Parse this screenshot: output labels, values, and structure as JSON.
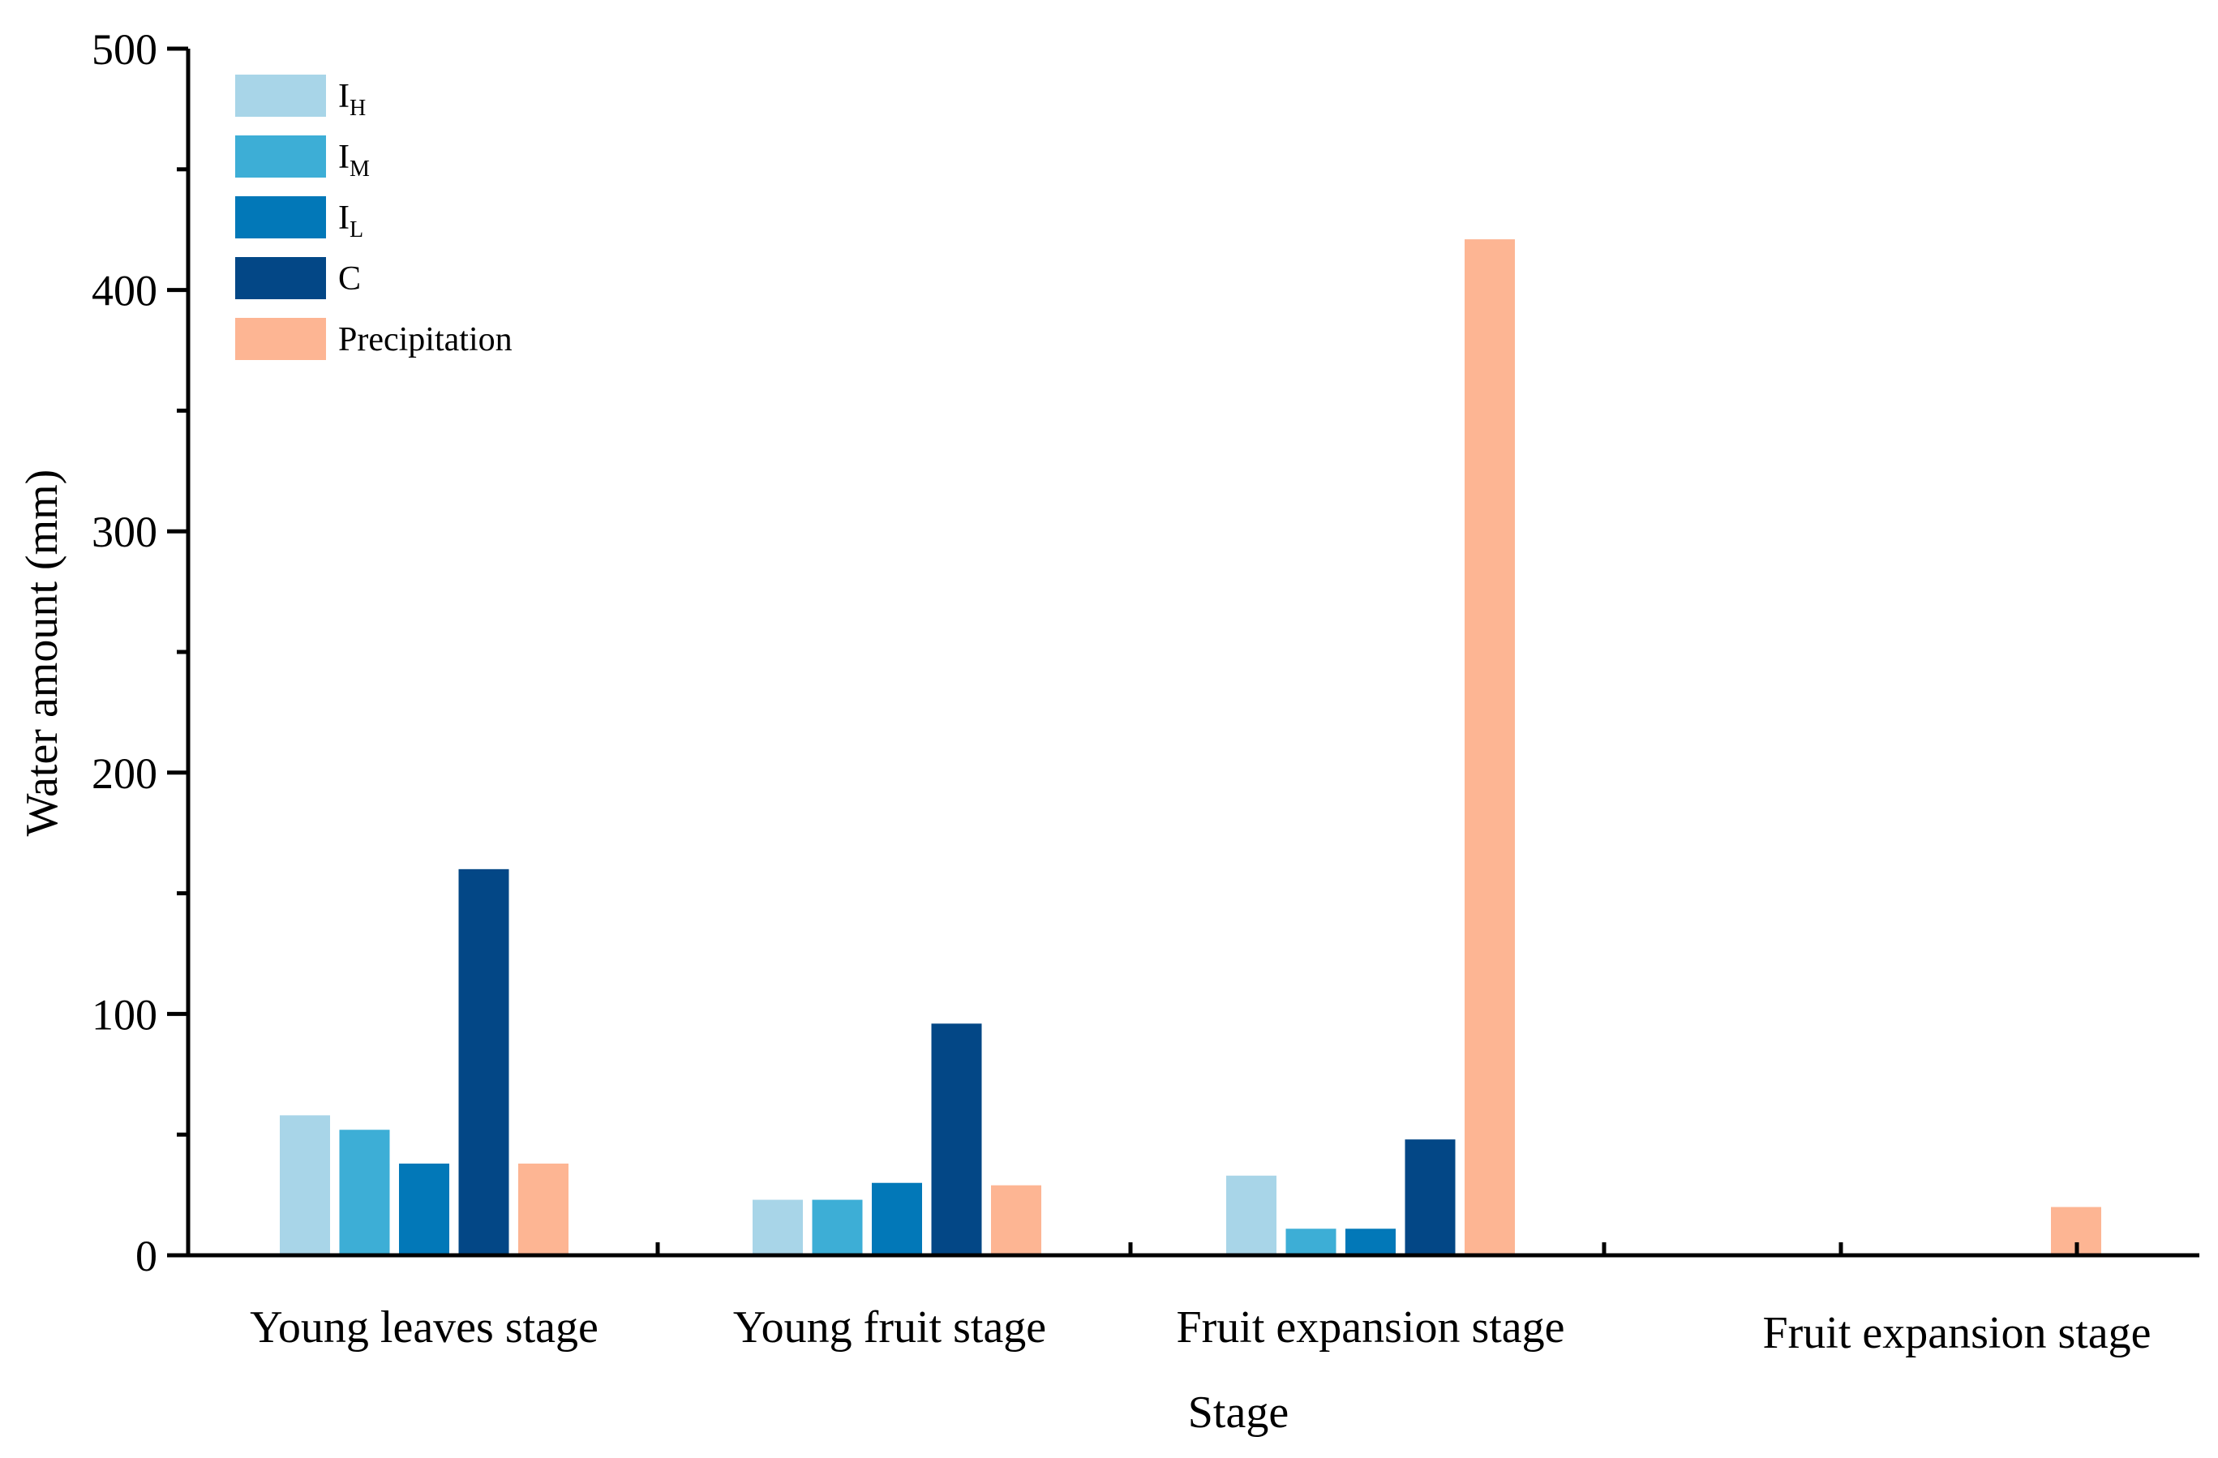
{
  "chart_data": {
    "type": "bar",
    "title": "",
    "xlabel": "Stage",
    "ylabel": "Water amount (mm)",
    "ylim": [
      0,
      500
    ],
    "yticks": [
      0,
      100,
      200,
      300,
      400,
      500
    ],
    "y_minor_step": 50,
    "grid": false,
    "legend_position": "top-left",
    "categories": [
      "Young leaves stage",
      "Young fruit stage",
      "Fruit expansion stage",
      "Fruit expansion stage"
    ],
    "series": [
      {
        "name": "I",
        "subscript": "H",
        "color": "#a8d5e8",
        "values": [
          58,
          23,
          33,
          null
        ]
      },
      {
        "name": "I",
        "subscript": "M",
        "color": "#3daed6",
        "values": [
          52,
          23,
          11,
          null
        ]
      },
      {
        "name": "I",
        "subscript": "L",
        "color": "#0278b8",
        "values": [
          38,
          30,
          11,
          null
        ]
      },
      {
        "name": "C",
        "subscript": "",
        "color": "#034786",
        "values": [
          160,
          96,
          48,
          null
        ]
      },
      {
        "name": "Precipitation",
        "subscript": "",
        "color": "#fdb593",
        "values": [
          38,
          29,
          421,
          20
        ]
      }
    ]
  }
}
